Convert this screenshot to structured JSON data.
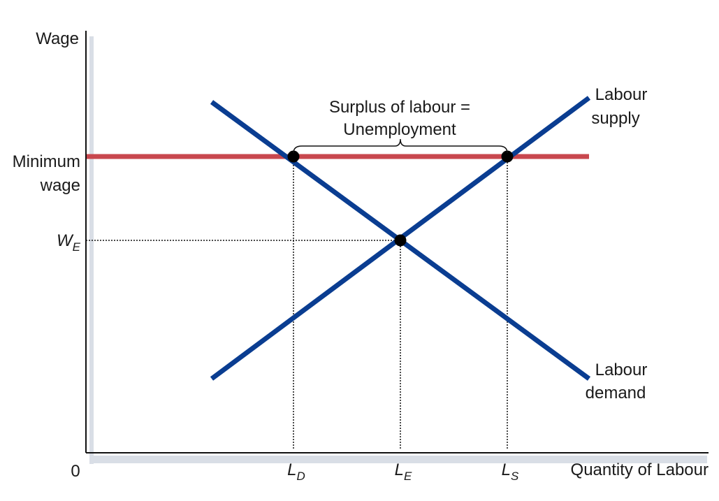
{
  "chart_data": {
    "type": "line",
    "title": "",
    "xlabel": "Quantity of Labour",
    "ylabel": "Wage",
    "origin_label": "0",
    "xlim": [
      0,
      1
    ],
    "ylim": [
      0,
      1
    ],
    "grid": false,
    "series": [
      {
        "name": "Labour supply",
        "label_lines": [
          "Labour",
          "supply"
        ],
        "color": "#0a3d91",
        "points": [
          [
            0.2,
            0.17
          ],
          [
            0.8,
            0.84
          ]
        ]
      },
      {
        "name": "Labour demand",
        "label_lines": [
          "Labour",
          "demand"
        ],
        "color": "#0a3d91",
        "points": [
          [
            0.2,
            0.83
          ],
          [
            0.8,
            0.17
          ]
        ]
      },
      {
        "name": "Minimum wage",
        "label_lines": [
          "Minimum",
          "wage"
        ],
        "color": "#c8474e",
        "points": [
          [
            0,
            0.7
          ],
          [
            0.8,
            0.7
          ]
        ]
      }
    ],
    "equilibrium": {
      "x": 0.5,
      "y": 0.5
    },
    "intersections": [
      {
        "x": 0.33,
        "y": 0.7
      },
      {
        "x": 0.67,
        "y": 0.7
      },
      {
        "x": 0.5,
        "y": 0.5
      }
    ],
    "y_ticks": [
      {
        "value": 0.5,
        "main": "W",
        "sub": "E"
      }
    ],
    "x_ticks": [
      {
        "value": 0.33,
        "main": "L",
        "sub": "D"
      },
      {
        "value": 0.5,
        "main": "L",
        "sub": "E"
      },
      {
        "value": 0.67,
        "main": "L",
        "sub": "S"
      }
    ],
    "annotation": {
      "lines": [
        "Surplus of labour =",
        "Unemployment"
      ],
      "from_x": 0.33,
      "to_x": 0.67
    }
  }
}
